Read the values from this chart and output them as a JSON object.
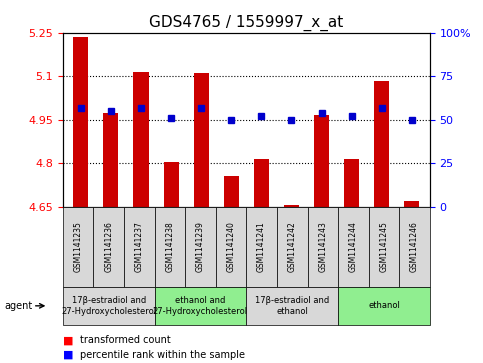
{
  "title": "GDS4765 / 1559997_x_at",
  "samples": [
    "GSM1141235",
    "GSM1141236",
    "GSM1141237",
    "GSM1141238",
    "GSM1141239",
    "GSM1141240",
    "GSM1141241",
    "GSM1141242",
    "GSM1141243",
    "GSM1141244",
    "GSM1141245",
    "GSM1141246"
  ],
  "bar_values": [
    5.235,
    4.975,
    5.115,
    4.805,
    5.11,
    4.755,
    4.815,
    4.655,
    4.965,
    4.815,
    5.085,
    4.67
  ],
  "dot_values": [
    57,
    55,
    57,
    51,
    57,
    50,
    52,
    50,
    54,
    52,
    57,
    50
  ],
  "ylim_left": [
    4.65,
    5.25
  ],
  "ylim_right": [
    0,
    100
  ],
  "yticks_left": [
    4.65,
    4.8,
    4.95,
    5.1,
    5.25
  ],
  "yticks_right": [
    0,
    25,
    50,
    75,
    100
  ],
  "ytick_labels_left": [
    "4.65",
    "4.8",
    "4.95",
    "5.1",
    "5.25"
  ],
  "ytick_labels_right": [
    "0",
    "25",
    "50",
    "75",
    "100%"
  ],
  "hlines": [
    4.8,
    4.95,
    5.1
  ],
  "bar_color": "#cc0000",
  "dot_color": "#0000cc",
  "bar_width": 0.5,
  "group_configs": [
    {
      "span": [
        0,
        2
      ],
      "label": "17β-estradiol and\n27-Hydroxycholesterol",
      "color": "#d8d8d8"
    },
    {
      "span": [
        3,
        5
      ],
      "label": "ethanol and\n27-Hydroxycholesterol",
      "color": "#90ee90"
    },
    {
      "span": [
        6,
        8
      ],
      "label": "17β-estradiol and\nethanol",
      "color": "#d8d8d8"
    },
    {
      "span": [
        9,
        11
      ],
      "label": "ethanol",
      "color": "#90ee90"
    }
  ],
  "agent_label": "agent",
  "legend_bar_label": "transformed count",
  "legend_dot_label": "percentile rank within the sample",
  "title_fontsize": 11,
  "tick_fontsize": 8,
  "sample_box_color": "#d8d8d8",
  "background_color": "#ffffff"
}
